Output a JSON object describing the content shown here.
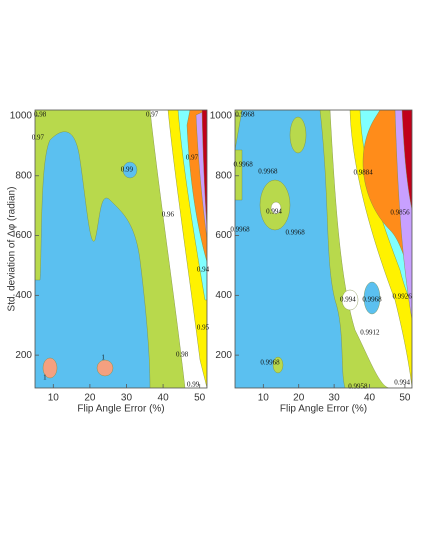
{
  "chart_data": [
    {
      "type": "contour",
      "xlabel": "Flip Angle Error (%)",
      "ylabel": "Std. deviation of Δφ (radian)",
      "xlim": [
        5,
        52
      ],
      "ylim": [
        90,
        1020
      ],
      "xticks": [
        10,
        20,
        30,
        40,
        50
      ],
      "yticks": [
        200,
        400,
        600,
        800,
        1000
      ],
      "contour_labels": [
        {
          "label": "0.98",
          "x": 6.4,
          "y": 1003
        },
        {
          "label": "0.97",
          "x": 5.8,
          "y": 926
        },
        {
          "label": "0.97",
          "x": 37,
          "y": 1003
        },
        {
          "label": "0.99",
          "x": 30.1,
          "y": 819
        },
        {
          "label": "0.97",
          "x": 47.9,
          "y": 859
        },
        {
          "label": "0.96",
          "x": 41.3,
          "y": 669
        },
        {
          "label": "0.94",
          "x": 50.9,
          "y": 485
        },
        {
          "label": "0.95",
          "x": 50.9,
          "y": 291
        },
        {
          "label": "0.98",
          "x": 45.2,
          "y": 200
        },
        {
          "label": "0.99",
          "x": 48.2,
          "y": 100
        },
        {
          "label": "1",
          "x": 23.6,
          "y": 190
        },
        {
          "label": "1",
          "x": 7.7,
          "y": 123
        }
      ]
    },
    {
      "type": "contour",
      "xlabel": "Flip Angle Error (%)",
      "xlim": [
        2,
        52
      ],
      "ylim": [
        90,
        1020
      ],
      "xticks": [
        10,
        20,
        30,
        40,
        50
      ],
      "yticks": [
        200,
        400,
        600,
        800,
        1000
      ],
      "contour_labels": [
        {
          "label": "0.9968",
          "x": 4.8,
          "y": 1003
        },
        {
          "label": "0.9968",
          "x": 4.3,
          "y": 836
        },
        {
          "label": "0.9968",
          "x": 11.3,
          "y": 813
        },
        {
          "label": "0.994",
          "x": 13,
          "y": 679
        },
        {
          "label": "0.9968",
          "x": 19,
          "y": 609
        },
        {
          "label": "0.9968",
          "x": 3.4,
          "y": 619
        },
        {
          "label": "0.9884",
          "x": 38.2,
          "y": 809
        },
        {
          "label": "0.9856",
          "x": 48.6,
          "y": 675
        },
        {
          "label": "0.994",
          "x": 33.9,
          "y": 384
        },
        {
          "label": "0.9968",
          "x": 40.7,
          "y": 384
        },
        {
          "label": "0.9912",
          "x": 40.1,
          "y": 274
        },
        {
          "label": "0.9926",
          "x": 49.2,
          "y": 395
        },
        {
          "label": "0.9968",
          "x": 11.9,
          "y": 174
        },
        {
          "label": "0.9958",
          "x": 36.7,
          "y": 93
        },
        {
          "label": "0.994",
          "x": 49.2,
          "y": 107
        }
      ]
    }
  ]
}
